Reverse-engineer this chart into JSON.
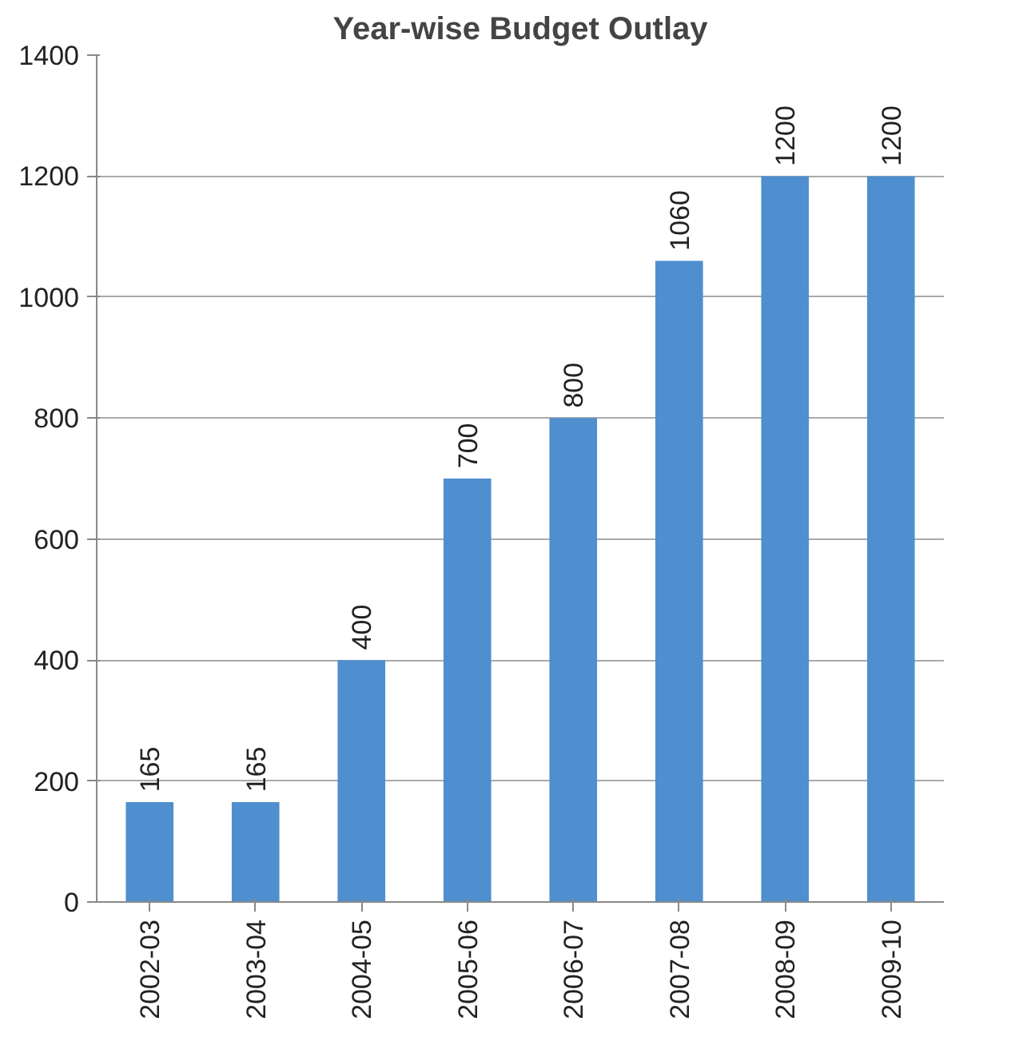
{
  "chart_data": {
    "type": "bar",
    "title": "Year-wise Budget Outlay",
    "categories": [
      "2002-03",
      "2003-04",
      "2004-05",
      "2005-06",
      "2006-07",
      "2007-08",
      "2008-09",
      "2009-10"
    ],
    "values": [
      165,
      165,
      400,
      700,
      800,
      1060,
      1200,
      1200
    ],
    "color": "#4f8fcf",
    "ylim": [
      0,
      1400
    ],
    "yticks": [
      0,
      200,
      400,
      600,
      800,
      1000,
      1200,
      1400
    ],
    "grid": "y",
    "data_labels": true
  }
}
